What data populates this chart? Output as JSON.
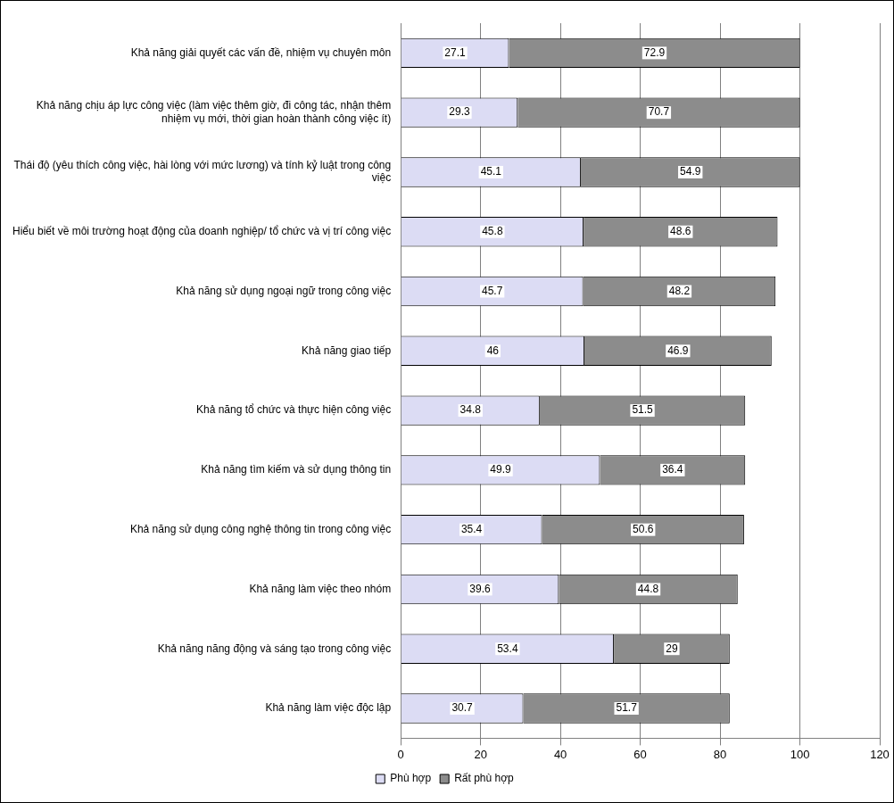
{
  "chart_data": {
    "type": "bar",
    "orientation": "horizontal",
    "stacked": true,
    "categories": [
      "Khả năng giải quyết các vấn đề, nhiệm vụ chuyên môn",
      "Khả năng chịu áp lực công việc (làm việc thêm giờ, đi công tác, nhận thêm nhiệm vụ mới, thời gian hoàn thành công việc ít)",
      "Thái độ (yêu thích công việc, hài lòng với mức lương) và tính kỷ luật trong công việc",
      "Hiểu biết về môi trường hoạt động của doanh nghiệp/ tổ chức và vị trí công việc",
      "Khả năng sử dụng ngoại ngữ trong công việc",
      "Khả năng giao tiếp",
      "Khả năng tổ chức và thực hiện công việc",
      "Khả năng tìm kiếm và sử dụng thông tin",
      "Khả năng sử dụng công nghệ thông tin trong công việc",
      "Khả năng làm việc theo nhóm",
      "Khả năng năng động và sáng tạo trong công việc",
      "Khả năng làm việc độc lập"
    ],
    "series": [
      {
        "name": "Phù hợp",
        "color": "#dcdcf4",
        "values": [
          27.1,
          29.3,
          45.1,
          45.8,
          45.7,
          46,
          34.8,
          49.9,
          35.4,
          39.6,
          53.4,
          30.7
        ]
      },
      {
        "name": "Rất phù hợp",
        "color": "#8c8c8c",
        "values": [
          72.9,
          70.7,
          54.9,
          48.6,
          48.2,
          46.9,
          51.5,
          36.4,
          50.6,
          44.8,
          29,
          51.7
        ]
      }
    ],
    "xlim": [
      0,
      120
    ],
    "xticks": [
      0,
      20,
      40,
      60,
      80,
      100,
      120
    ],
    "grid": "x",
    "legend": "bottom",
    "data_labels": true
  }
}
